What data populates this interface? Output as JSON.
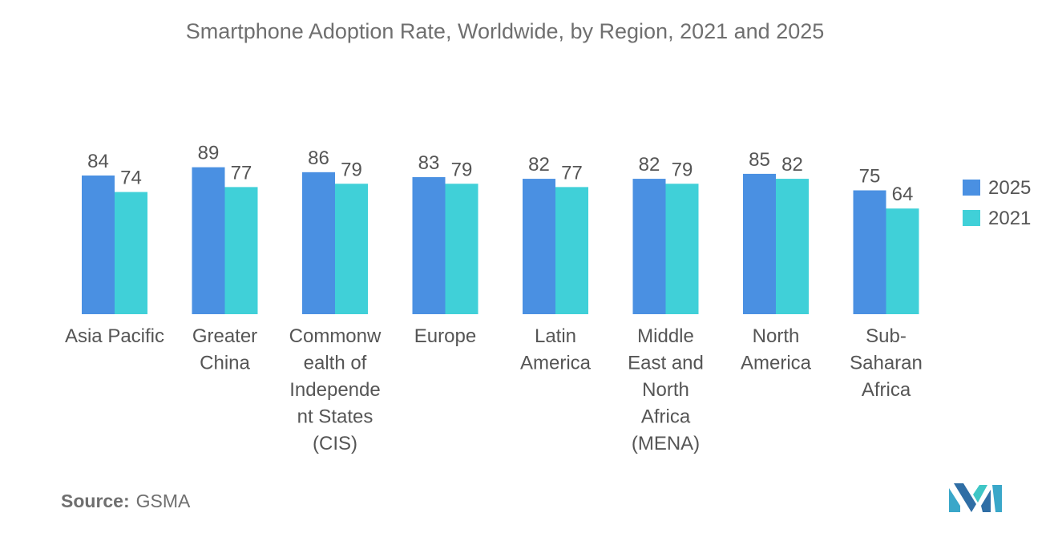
{
  "chart_data": {
    "type": "bar",
    "title": "Smartphone Adoption Rate, Worldwide, by Region, 2021 and 2025",
    "categories": [
      [
        "Asia Pacific"
      ],
      [
        "Greater",
        "China"
      ],
      [
        "Commonw",
        "ealth of",
        "Independe",
        "nt States",
        "(CIS)"
      ],
      [
        "Europe"
      ],
      [
        "Latin",
        "America"
      ],
      [
        "Middle",
        "East and",
        "North",
        "Africa",
        "(MENA)"
      ],
      [
        "North",
        "America"
      ],
      [
        "Sub-",
        "Saharan",
        "Africa"
      ]
    ],
    "series": [
      {
        "name": "2025",
        "color": "#4a90e2",
        "values": [
          84,
          89,
          86,
          83,
          82,
          82,
          85,
          75
        ]
      },
      {
        "name": "2021",
        "color": "#40d0d8",
        "values": [
          74,
          77,
          79,
          79,
          77,
          79,
          82,
          64
        ]
      }
    ],
    "ylim": [
      0,
      100
    ],
    "grid": false,
    "legend_position": "right"
  },
  "source": {
    "label": "Source:",
    "value": "GSMA"
  }
}
